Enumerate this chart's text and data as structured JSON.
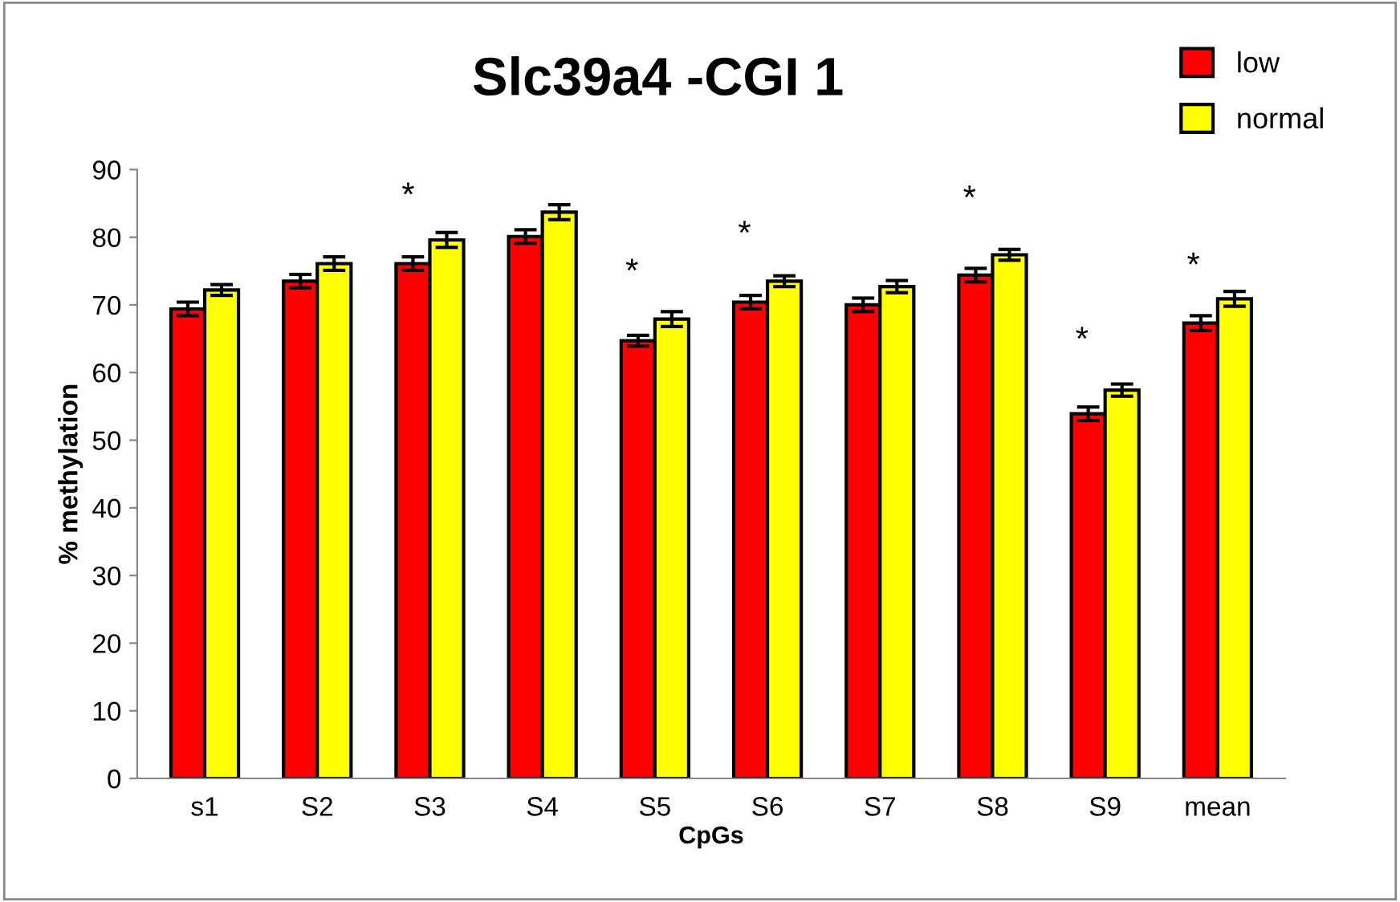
{
  "chart_data": {
    "type": "bar",
    "title": "Slc39a4 -CGI 1",
    "xlabel": "CpGs",
    "ylabel": "% methylation",
    "categories": [
      "s1",
      "S2",
      "S3",
      "S4",
      "S5",
      "S6",
      "S7",
      "S8",
      "S9",
      "mean"
    ],
    "series": [
      {
        "name": "low",
        "color": "#ff0000",
        "values": [
          69.4,
          73.5,
          76.1,
          80.1,
          64.7,
          70.4,
          70.0,
          74.4,
          53.9,
          67.3
        ],
        "errors": [
          1,
          1,
          1,
          1,
          0.8,
          1,
          1,
          1,
          1,
          1.1
        ]
      },
      {
        "name": "normal",
        "color": "#ffff00",
        "values": [
          72.2,
          76.1,
          79.6,
          83.7,
          67.9,
          73.5,
          72.7,
          77.4,
          57.4,
          70.9
        ],
        "errors": [
          0.8,
          1,
          1.1,
          1.1,
          1.1,
          0.8,
          0.9,
          0.8,
          0.9,
          1.1
        ]
      }
    ],
    "annotations": [
      "*",
      "*",
      "*",
      "*",
      "*",
      "*"
    ],
    "ylim": [
      0,
      90
    ],
    "yticks": [
      0,
      10,
      20,
      30,
      40,
      50,
      60,
      70,
      80,
      90
    ],
    "grid": false,
    "legend": "top right"
  }
}
